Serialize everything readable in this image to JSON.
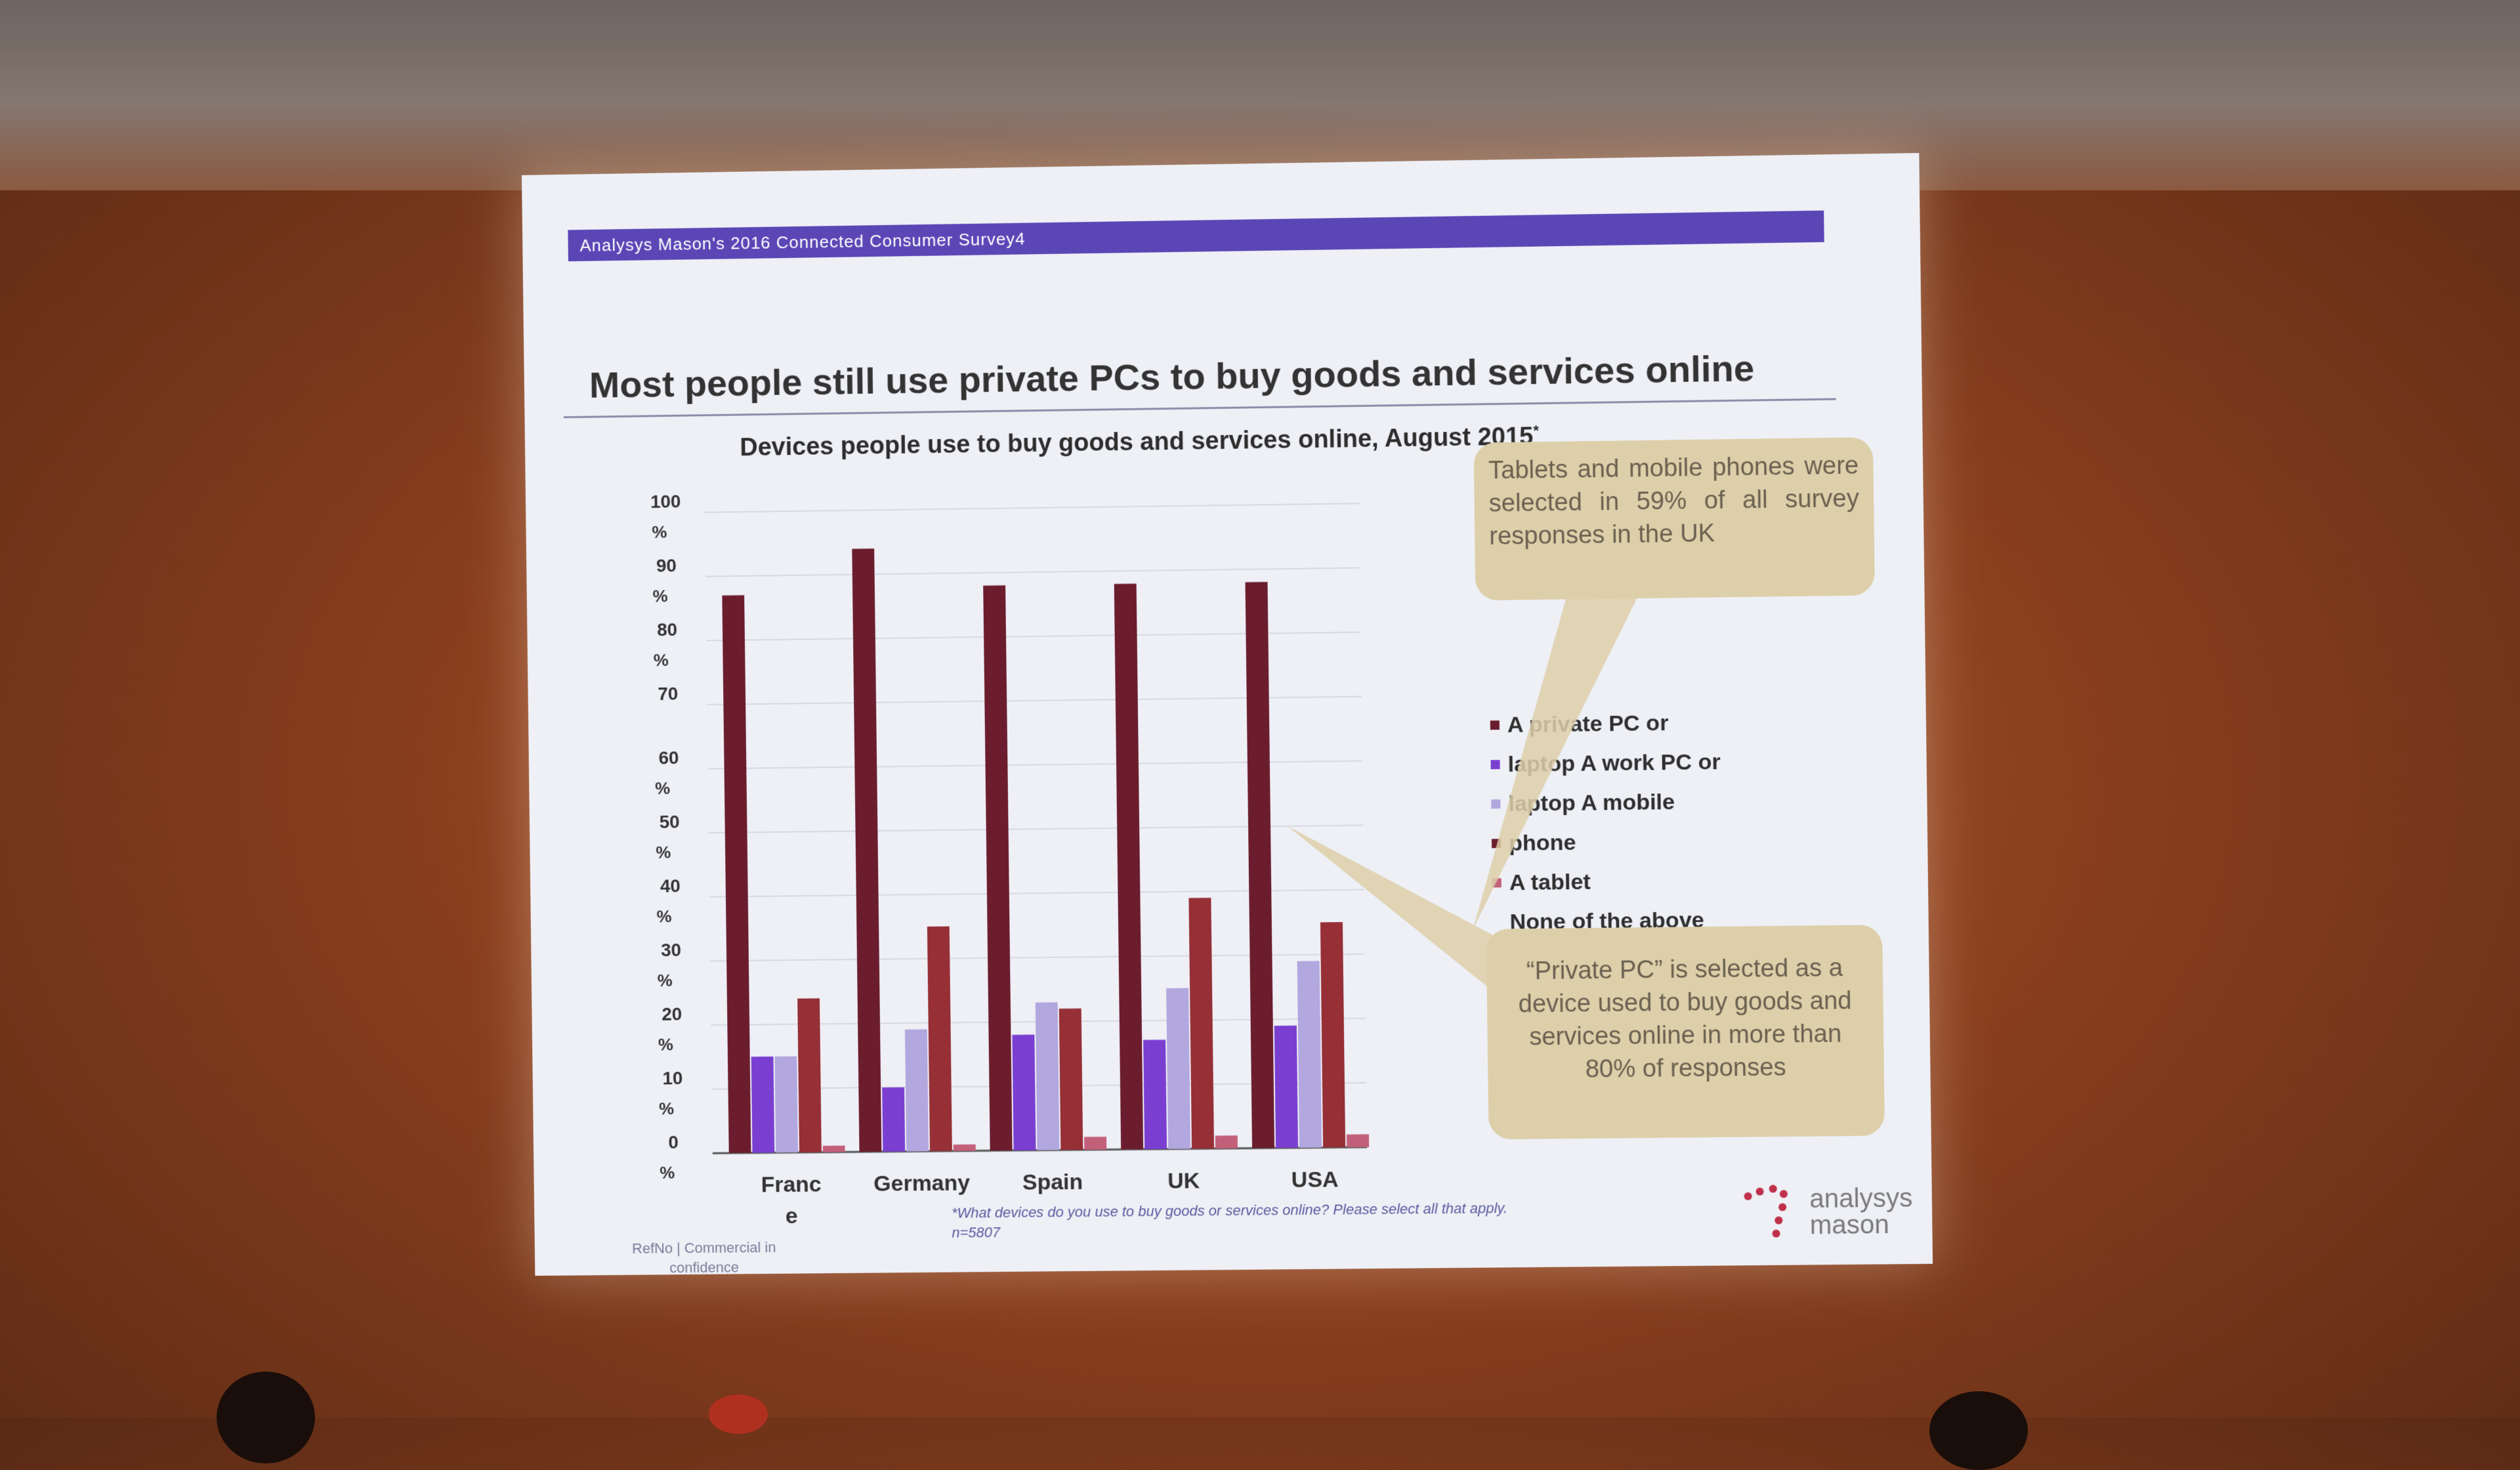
{
  "header": {
    "text": "Analysys Mason's 2016 Connected Consumer Survey4"
  },
  "title": "Most people still use private PCs to buy goods and services online",
  "chart_data": {
    "type": "bar",
    "title": "Devices people use to buy goods and services online, August 2015",
    "title_marker": "*",
    "xlabel": "",
    "ylabel": "",
    "categories": [
      "France",
      "Germany",
      "Spain",
      "UK",
      "USA"
    ],
    "category_labels": [
      [
        "Franc",
        "e"
      ],
      [
        "Germany"
      ],
      [
        "Spain"
      ],
      [
        "UK"
      ],
      [
        "USA"
      ]
    ],
    "ylim": [
      0,
      100
    ],
    "yticks": [
      [
        "0",
        "%"
      ],
      [
        "10",
        "%"
      ],
      [
        "20",
        "%"
      ],
      [
        "30",
        "%"
      ],
      [
        "40",
        "%"
      ],
      [
        "50",
        "%"
      ],
      [
        "60",
        "%"
      ],
      [
        "70",
        ""
      ],
      [
        "80",
        "%"
      ],
      [
        "90",
        "%"
      ],
      [
        "100",
        "%"
      ]
    ],
    "grid": true,
    "legend_position": "right",
    "series": [
      {
        "name": "A private PC or laptop",
        "color": "#6b1d2e",
        "values": [
          87,
          94,
          88,
          88,
          88
        ]
      },
      {
        "name": "A work PC or laptop",
        "color": "#7a3fd1",
        "values": [
          15,
          10,
          18,
          17,
          19
        ]
      },
      {
        "name": "A mobile phone",
        "color": "#b2a7de",
        "values": [
          15,
          19,
          23,
          25,
          29
        ]
      },
      {
        "name": "A tablet",
        "color": "#962f36",
        "values": [
          24,
          35,
          22,
          39,
          35
        ]
      },
      {
        "name": "None of the above",
        "color": "#c2607a",
        "values": [
          1,
          1,
          2,
          2,
          2
        ]
      }
    ]
  },
  "legend_lines": [
    {
      "text": "A private PC or",
      "color": "#6b1d2e"
    },
    {
      "text": "laptop  A work PC or",
      "color": "#7a3fd1"
    },
    {
      "text": "laptop  A mobile",
      "color": "#b2a7de"
    },
    {
      "text": "phone",
      "color": "#6b1d2e"
    },
    {
      "text": "A tablet",
      "color": "#c2607a"
    },
    {
      "text": "None of the above",
      "color": ""
    }
  ],
  "callouts": {
    "top": "Tablets and mobile phones were selected in 59% of all survey responses in the UK",
    "bottom": "“Private PC” is selected as a device used to buy goods and services online in more than 80% of responses"
  },
  "footnote": {
    "line1": "*What devices do you use to buy goods or services online? Please select all that apply.",
    "line2": "n=5807"
  },
  "footer_left": {
    "line1": "RefNo | Commercial in",
    "line2": "confidence"
  },
  "logo": {
    "line1": "analysys",
    "line2": "mason"
  }
}
